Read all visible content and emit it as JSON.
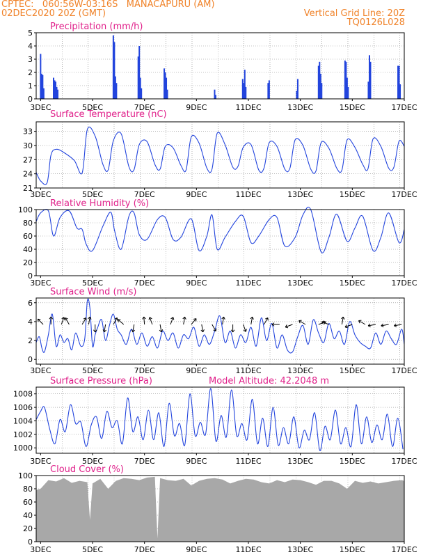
{
  "header": {
    "line1": "CPTEC:   060:56W-03:16S   MANACAPURU (AM)",
    "line2": "02DEC2020 20Z (GMT)",
    "right1": "Vertical Grid Line: 20Z",
    "right2": "TQ0126L028"
  },
  "colors": {
    "header": "#f0832a",
    "title": "#e0208a",
    "line": "#2244dd",
    "bar": "#2244dd",
    "cloud": "#a8a8a8",
    "grid": "#888888"
  },
  "x_ticks": [
    "3DEC",
    "5DEC",
    "7DEC",
    "9DEC",
    "11DEC",
    "13DEC",
    "15DEC",
    "17DEC"
  ],
  "x_tick_days": [
    3,
    5,
    7,
    9,
    11,
    13,
    15,
    17
  ],
  "x_range_days": [
    2.83,
    17.0
  ],
  "vertical_grid_days": [
    3.83,
    4.83,
    5.83,
    6.83,
    7.83,
    8.83,
    9.83,
    10.83,
    11.83,
    12.83,
    13.83,
    14.83,
    15.83,
    16.83
  ],
  "chart_data": [
    {
      "type": "bar",
      "title": "Precipitation (mm/h)",
      "ylim": [
        0,
        5
      ],
      "yticks": [
        0,
        1,
        2,
        3,
        4,
        5
      ],
      "x": [
        3.0,
        3.04,
        3.08,
        3.12,
        3.5,
        3.54,
        3.58,
        3.62,
        3.66,
        5.8,
        5.84,
        5.88,
        5.92,
        6.76,
        6.8,
        6.84,
        6.88,
        7.76,
        7.8,
        7.84,
        7.88,
        9.7,
        9.74,
        10.78,
        10.82,
        10.86,
        10.9,
        11.76,
        11.8,
        12.86,
        12.9,
        13.7,
        13.74,
        13.78,
        13.82,
        14.72,
        14.76,
        14.8,
        14.84,
        15.62,
        15.66,
        15.7,
        16.76,
        16.8,
        16.84
      ],
      "values": [
        3.4,
        1.9,
        1.8,
        0.8,
        1.6,
        1.4,
        1.3,
        0.9,
        0.7,
        4.8,
        4.3,
        1.7,
        1.2,
        3.2,
        4.0,
        1.6,
        0.8,
        2.3,
        2.0,
        1.6,
        0.7,
        0.7,
        0.3,
        1.5,
        1.2,
        2.2,
        0.9,
        1.2,
        1.4,
        0.6,
        1.5,
        2.5,
        2.8,
        1.9,
        1.2,
        2.9,
        2.8,
        1.6,
        0.9,
        1.3,
        3.3,
        2.8,
        2.5,
        2.5,
        1.1
      ]
    },
    {
      "type": "line",
      "title": "Surface Temperature (nC)",
      "ylim": [
        21,
        35
      ],
      "yticks": [
        21,
        24,
        27,
        30,
        33
      ],
      "x": [
        2.83,
        3.0,
        3.25,
        3.4,
        3.6,
        3.9,
        4.3,
        4.6,
        4.8,
        5.1,
        5.4,
        5.6,
        5.8,
        6.1,
        6.4,
        6.6,
        6.8,
        7.1,
        7.4,
        7.6,
        7.8,
        8.1,
        8.4,
        8.6,
        8.8,
        9.1,
        9.4,
        9.6,
        9.8,
        10.1,
        10.4,
        10.6,
        10.8,
        11.1,
        11.4,
        11.6,
        11.8,
        12.1,
        12.4,
        12.6,
        12.8,
        13.1,
        13.4,
        13.6,
        13.8,
        14.1,
        14.4,
        14.6,
        14.8,
        15.1,
        15.4,
        15.6,
        15.8,
        16.1,
        16.4,
        16.6,
        16.8,
        17.0
      ],
      "values": [
        24.3,
        22.5,
        22.1,
        28.0,
        29.2,
        28.5,
        26.8,
        24.2,
        33.4,
        32.0,
        26.0,
        24.8,
        31.0,
        32.5,
        25.5,
        24.9,
        30.2,
        30.8,
        26.0,
        25.0,
        29.8,
        29.5,
        25.8,
        24.8,
        31.8,
        30.5,
        25.2,
        25.0,
        32.6,
        30.2,
        25.4,
        25.6,
        29.6,
        30.2,
        24.8,
        25.2,
        30.6,
        29.8,
        25.0,
        25.2,
        31.2,
        30.0,
        25.0,
        24.6,
        30.6,
        29.4,
        25.2,
        24.8,
        31.2,
        29.6,
        26.0,
        25.0,
        31.4,
        29.8,
        25.2,
        25.4,
        30.9,
        29.8
      ]
    },
    {
      "type": "line",
      "title": "Relative Humidity (%)",
      "ylim": [
        0,
        100
      ],
      "yticks": [
        0,
        20,
        40,
        60,
        80,
        100
      ],
      "x": [
        2.83,
        3.0,
        3.3,
        3.5,
        3.75,
        4.1,
        4.4,
        4.6,
        4.75,
        5.0,
        5.4,
        5.7,
        5.85,
        6.1,
        6.4,
        6.6,
        6.8,
        7.1,
        7.5,
        7.8,
        8.1,
        8.4,
        8.8,
        9.1,
        9.4,
        9.6,
        9.8,
        10.1,
        10.5,
        10.8,
        11.1,
        11.4,
        11.8,
        12.1,
        12.4,
        12.8,
        13.1,
        13.4,
        13.8,
        14.1,
        14.4,
        14.8,
        15.1,
        15.4,
        15.8,
        16.1,
        16.4,
        16.8,
        17.0
      ],
      "values": [
        82,
        95,
        98,
        60,
        88,
        98,
        72,
        70,
        48,
        38,
        75,
        96,
        68,
        40,
        90,
        95,
        62,
        55,
        85,
        88,
        55,
        58,
        86,
        38,
        60,
        92,
        40,
        58,
        82,
        90,
        50,
        60,
        85,
        88,
        45,
        58,
        92,
        100,
        36,
        58,
        93,
        52,
        72,
        90,
        38,
        58,
        95,
        50,
        70
      ]
    },
    {
      "type": "line",
      "title": "Surface Wind (m/s)",
      "ylim": [
        -0.5,
        6.5
      ],
      "yticks": [
        0,
        2,
        4,
        6
      ],
      "x": [
        2.83,
        2.95,
        3.05,
        3.15,
        3.3,
        3.45,
        3.6,
        3.75,
        3.9,
        4.05,
        4.2,
        4.35,
        4.55,
        4.7,
        4.8,
        4.9,
        5.0,
        5.1,
        5.2,
        5.35,
        5.5,
        5.65,
        5.8,
        5.95,
        6.1,
        6.3,
        6.5,
        6.7,
        6.9,
        7.1,
        7.3,
        7.5,
        7.7,
        7.9,
        8.1,
        8.3,
        8.5,
        8.7,
        8.9,
        9.1,
        9.3,
        9.5,
        9.7,
        9.9,
        10.1,
        10.3,
        10.5,
        10.7,
        10.9,
        11.1,
        11.3,
        11.5,
        11.7,
        11.9,
        12.1,
        12.3,
        12.5,
        12.7,
        12.9,
        13.1,
        13.3,
        13.5,
        13.7,
        13.9,
        14.1,
        14.3,
        14.5,
        14.7,
        14.9,
        15.1,
        15.3,
        15.5,
        15.7,
        15.9,
        16.1,
        16.3,
        16.5,
        16.7,
        16.9,
        17.0
      ],
      "values": [
        1.8,
        2.4,
        1.2,
        0.8,
        2.6,
        4.8,
        1.4,
        2.6,
        1.8,
        2.2,
        1.0,
        2.8,
        1.4,
        2.2,
        6.2,
        5.4,
        1.4,
        2.6,
        3.4,
        4.2,
        2.0,
        3.6,
        4.8,
        3.2,
        2.6,
        1.6,
        3.2,
        1.6,
        2.8,
        1.4,
        2.4,
        1.2,
        3.0,
        2.0,
        2.8,
        1.2,
        2.6,
        2.2,
        3.4,
        1.4,
        2.6,
        1.6,
        3.0,
        4.6,
        1.8,
        3.0,
        1.2,
        2.6,
        1.8,
        3.4,
        1.4,
        4.4,
        2.0,
        3.8,
        1.2,
        2.6,
        1.0,
        0.8,
        2.4,
        3.6,
        1.6,
        4.2,
        2.8,
        1.8,
        3.8,
        2.2,
        3.0,
        1.6,
        4.0,
        2.6,
        1.8,
        1.4,
        1.2,
        2.8,
        1.6,
        3.0,
        2.2,
        1.6,
        3.2,
        1.6
      ]
    },
    {
      "type": "line",
      "title": "Surface Pressure (hPa)",
      "ylim": [
        999.2,
        1009.0
      ],
      "yticks": [
        1000,
        1002,
        1004,
        1006,
        1008
      ],
      "x": [
        2.83,
        3.0,
        3.15,
        3.35,
        3.55,
        3.75,
        3.95,
        4.15,
        4.35,
        4.55,
        4.75,
        4.95,
        5.15,
        5.35,
        5.55,
        5.75,
        5.95,
        6.15,
        6.35,
        6.55,
        6.75,
        6.95,
        7.15,
        7.35,
        7.55,
        7.75,
        7.95,
        8.15,
        8.35,
        8.55,
        8.75,
        8.95,
        9.15,
        9.35,
        9.55,
        9.75,
        9.95,
        10.15,
        10.35,
        10.55,
        10.75,
        10.95,
        11.15,
        11.35,
        11.55,
        11.75,
        11.95,
        12.15,
        12.35,
        12.55,
        12.75,
        12.95,
        13.15,
        13.35,
        13.55,
        13.75,
        13.95,
        14.15,
        14.35,
        14.55,
        14.75,
        14.95,
        15.15,
        15.35,
        15.55,
        15.75,
        15.95,
        16.15,
        16.35,
        16.55,
        16.75,
        16.95
      ],
      "values": [
        1004.2,
        1005.4,
        1006.0,
        1002.8,
        1000.6,
        1004.2,
        1002.4,
        1006.4,
        1003.6,
        1003.8,
        1000.2,
        1003.4,
        1004.6,
        1001.4,
        1005.4,
        1003.0,
        1004.0,
        1000.6,
        1007.4,
        1002.4,
        1004.6,
        1001.2,
        1005.6,
        1001.2,
        1005.2,
        1000.2,
        1006.6,
        1001.8,
        1003.6,
        1000.4,
        1008.0,
        1001.8,
        1003.8,
        1002.0,
        1008.8,
        1001.0,
        1004.8,
        1001.6,
        1008.6,
        1001.8,
        1003.6,
        1001.2,
        1007.2,
        1000.6,
        1004.4,
        1000.2,
        1006.0,
        1000.4,
        1003.0,
        1000.6,
        1004.6,
        1000.0,
        1002.6,
        1001.2,
        1005.2,
        999.6,
        1003.2,
        1001.2,
        1005.6,
        1000.6,
        1003.0,
        1000.2,
        1006.4,
        1000.6,
        1004.6,
        1000.8,
        1003.4,
        1001.2,
        1005.0,
        1000.2,
        1004.4,
        999.8
      ]
    },
    {
      "type": "area",
      "title": "Cloud Cover (%)",
      "ylim": [
        0,
        100
      ],
      "yticks": [
        0,
        20,
        40,
        60,
        80,
        100
      ],
      "x": [
        2.83,
        3.0,
        3.3,
        3.6,
        3.9,
        4.2,
        4.5,
        4.8,
        4.9,
        5.0,
        5.3,
        5.6,
        5.9,
        6.2,
        6.5,
        6.8,
        7.1,
        7.4,
        7.5,
        7.6,
        7.9,
        8.2,
        8.5,
        8.8,
        9.1,
        9.4,
        9.7,
        10.0,
        10.3,
        10.6,
        10.9,
        11.2,
        11.5,
        11.8,
        12.1,
        12.4,
        12.7,
        13.0,
        13.3,
        13.6,
        13.9,
        14.2,
        14.5,
        14.8,
        15.1,
        15.4,
        15.7,
        16.0,
        16.3,
        16.6,
        16.9,
        17.0
      ],
      "values": [
        78,
        80,
        93,
        91,
        96,
        89,
        92,
        90,
        33,
        88,
        95,
        80,
        92,
        96,
        95,
        93,
        97,
        98,
        5,
        96,
        93,
        92,
        95,
        85,
        92,
        95,
        96,
        94,
        88,
        92,
        95,
        94,
        90,
        88,
        93,
        90,
        94,
        93,
        90,
        86,
        92,
        92,
        88,
        80,
        92,
        89,
        91,
        88,
        90,
        92,
        93,
        92
      ]
    }
  ],
  "panel_extras": {
    "pressure_note": "Model Altitude: 42.2048 m"
  }
}
